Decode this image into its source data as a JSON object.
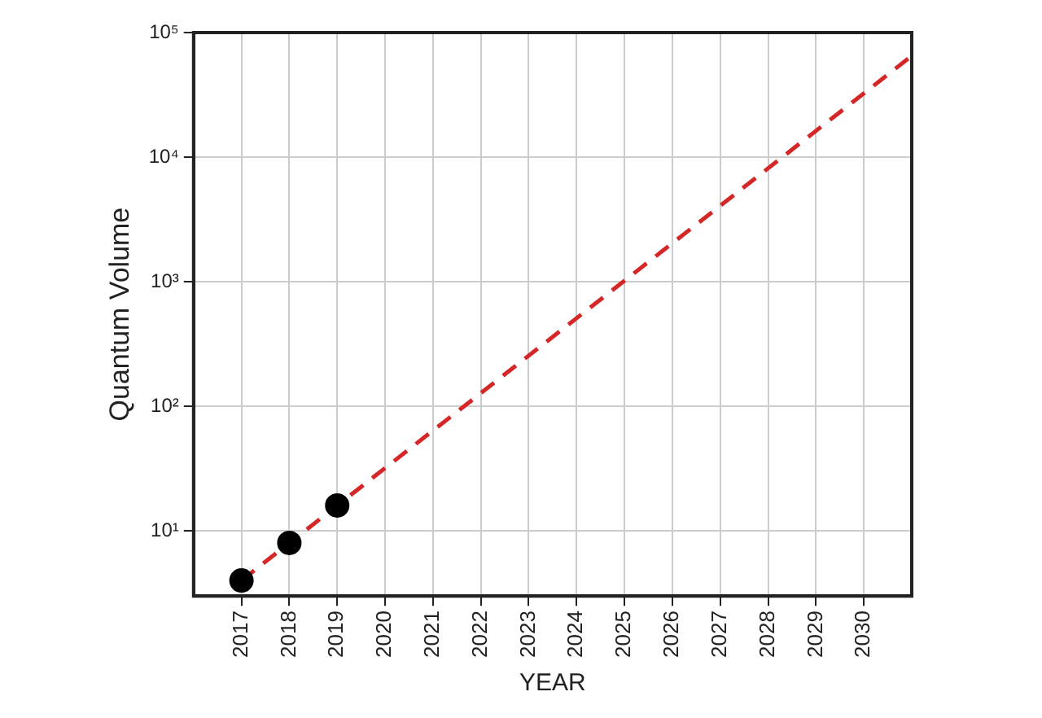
{
  "chart_data": {
    "type": "scatter",
    "xlabel": "YEAR",
    "ylabel": "Quantum Volume",
    "log": "y",
    "grid": true,
    "legend": false,
    "xlim": [
      2016,
      2031
    ],
    "xticks": [
      2017,
      2018,
      2019,
      2020,
      2021,
      2022,
      2023,
      2024,
      2025,
      2026,
      2027,
      2028,
      2029,
      2030
    ],
    "ylim": [
      3,
      100000
    ],
    "yticks": [
      {
        "value": 10,
        "label": "10¹"
      },
      {
        "value": 100,
        "label": "10²"
      },
      {
        "value": 1000,
        "label": "10³"
      },
      {
        "value": 10000,
        "label": "10⁴"
      },
      {
        "value": 100000,
        "label": "10⁵"
      }
    ],
    "series": [
      {
        "type": "line",
        "color": "#d62728",
        "line_style": "dashed",
        "marker": "none",
        "x": [
          2017,
          2031
        ],
        "values": [
          4,
          65000
        ]
      },
      {
        "type": "scatter",
        "color": "#000000",
        "marker": "circle",
        "x": [
          2017,
          2018,
          2019
        ],
        "values": [
          4,
          8,
          16
        ]
      }
    ]
  }
}
